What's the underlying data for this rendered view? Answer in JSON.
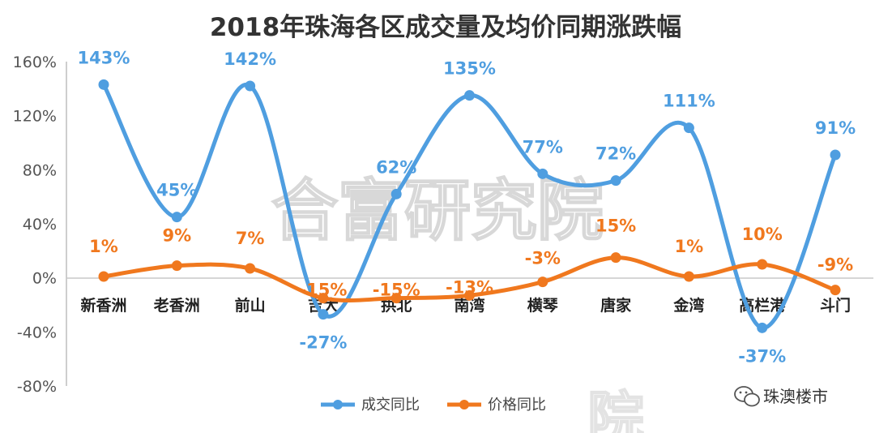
{
  "chart_data": {
    "type": "line",
    "title": "2018年珠海各区成交量及均价同期涨跌幅",
    "categories": [
      "新香洲",
      "老香洲",
      "前山",
      "吉大",
      "拱北",
      "南湾",
      "横琴",
      "唐家",
      "金湾",
      "高栏港",
      "斗门"
    ],
    "series": [
      {
        "name": "成交同比",
        "color": "#4f9ee0",
        "values": [
          143,
          45,
          142,
          -27,
          62,
          135,
          77,
          72,
          111,
          -37,
          91
        ],
        "labels": [
          "143%",
          "45%",
          "142%",
          "-27%",
          "62%",
          "135%",
          "77%",
          "72%",
          "111%",
          "-37%",
          "91%"
        ]
      },
      {
        "name": "价格同比",
        "color": "#f0781e",
        "values": [
          1,
          9,
          7,
          -15,
          -15,
          -13,
          -3,
          15,
          1,
          10,
          -9
        ],
        "labels": [
          "1%",
          "9%",
          "7%",
          "-15%",
          "-15%",
          "-13%",
          "-3%",
          "15%",
          "1%",
          "10%",
          "-9%"
        ]
      }
    ],
    "ylim": [
      -80,
      160
    ],
    "yticks": [
      "160%",
      "120%",
      "80%",
      "40%",
      "0%",
      "-40%",
      "-80%"
    ],
    "ytick_values": [
      160,
      120,
      80,
      40,
      0,
      -40,
      -80
    ],
    "legend_position": "bottom-center",
    "grid": false
  },
  "watermark": {
    "main": "合富研究院",
    "partial": "院"
  },
  "source": {
    "icon": "wechat-icon",
    "text": "珠澳楼市"
  }
}
